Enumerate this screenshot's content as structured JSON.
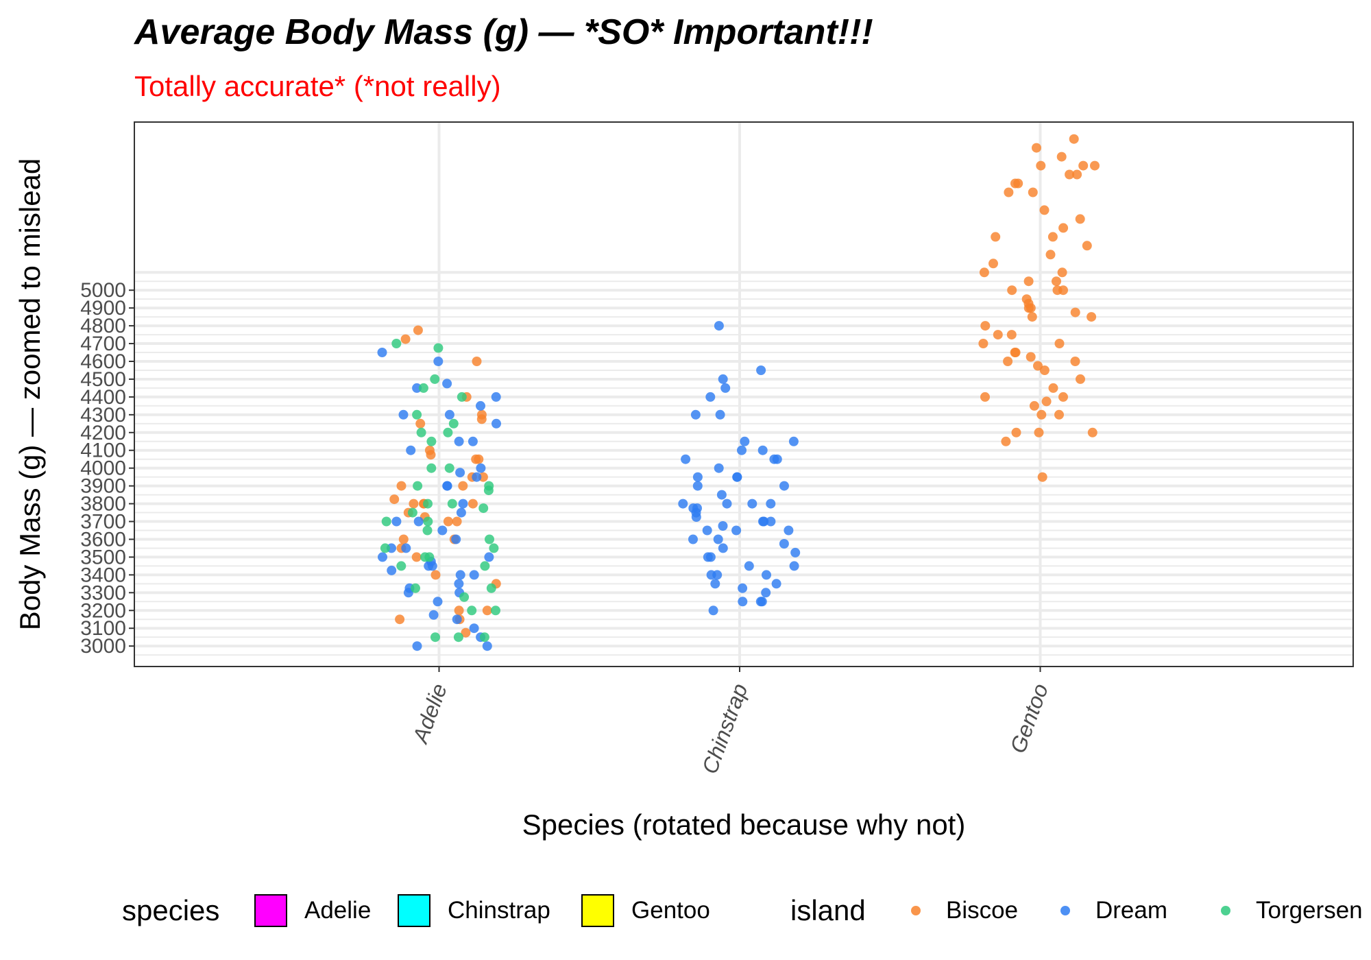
{
  "chart_data": {
    "type": "scatter",
    "title": "Average Body Mass (g) — *SO* Important!!!",
    "subtitle": "Totally accurate* (*not really)",
    "xlabel": "Species (rotated because why not)",
    "ylabel": "Body Mass (g) — zoomed to mislead",
    "categories": [
      "Adelie",
      "Chinstrap",
      "Gentoo"
    ],
    "y_ticks": [
      3000,
      3100,
      3200,
      3300,
      3400,
      3500,
      3600,
      3700,
      3800,
      3900,
      4000,
      4100,
      4200,
      4300,
      4400,
      4500,
      4600,
      4700,
      4800,
      4900,
      5000
    ],
    "ylim": [
      2885,
      5945
    ],
    "grid": true,
    "legend_position": "bottom",
    "legends": [
      {
        "title": "species",
        "items": [
          {
            "label": "Adelie",
            "color": "#ff00ff"
          },
          {
            "label": "Chinstrap",
            "color": "#00ffff"
          },
          {
            "label": "Gentoo",
            "color": "#ffff00"
          }
        ]
      },
      {
        "title": "island",
        "items": [
          {
            "label": "Biscoe",
            "color": "#f8822c"
          },
          {
            "label": "Dream",
            "color": "#2e7cf2"
          },
          {
            "label": "Torgersen",
            "color": "#2ec97e"
          }
        ]
      }
    ],
    "series": [
      {
        "name": "Biscoe",
        "color": "#f8822c",
        "points": [
          [
            "Adelie",
            3700
          ],
          [
            "Adelie",
            3500
          ],
          [
            "Adelie",
            3600
          ],
          [
            "Adelie",
            3350
          ],
          [
            "Adelie",
            3150
          ],
          [
            "Adelie",
            3200
          ],
          [
            "Adelie",
            3550
          ],
          [
            "Adelie",
            3950
          ],
          [
            "Adelie",
            3900
          ],
          [
            "Adelie",
            4600
          ],
          [
            "Adelie",
            4400
          ],
          [
            "Adelie",
            4250
          ],
          [
            "Adelie",
            3800
          ],
          [
            "Adelie",
            3600
          ],
          [
            "Adelie",
            3700
          ],
          [
            "Adelie",
            3750
          ],
          [
            "Adelie",
            4725
          ],
          [
            "Adelie",
            3950
          ],
          [
            "Adelie",
            4300
          ],
          [
            "Adelie",
            4050
          ],
          [
            "Adelie",
            3825
          ],
          [
            "Adelie",
            3400
          ],
          [
            "Adelie",
            3075
          ],
          [
            "Adelie",
            3800
          ],
          [
            "Adelie",
            3800
          ],
          [
            "Adelie",
            3800
          ],
          [
            "Adelie",
            3200
          ],
          [
            "Adelie",
            4275
          ],
          [
            "Adelie",
            4100
          ],
          [
            "Adelie",
            4075
          ],
          [
            "Adelie",
            4050
          ],
          [
            "Adelie",
            3900
          ],
          [
            "Adelie",
            3150
          ],
          [
            "Adelie",
            4775
          ],
          [
            "Adelie",
            3725
          ],
          [
            "Gentoo",
            5700
          ],
          [
            "Gentoo",
            5700
          ],
          [
            "Gentoo",
            5800
          ],
          [
            "Gentoo",
            5650
          ],
          [
            "Gentoo",
            5550
          ],
          [
            "Gentoo",
            5550
          ],
          [
            "Gentoo",
            5700
          ],
          [
            "Gentoo",
            5650
          ],
          [
            "Gentoo",
            5600
          ],
          [
            "Gentoo",
            5450
          ],
          [
            "Gentoo",
            5400
          ],
          [
            "Gentoo",
            5350
          ],
          [
            "Gentoo",
            5300
          ],
          [
            "Gentoo",
            5200
          ],
          [
            "Gentoo",
            5150
          ],
          [
            "Gentoo",
            5100
          ],
          [
            "Gentoo",
            5050
          ],
          [
            "Gentoo",
            5000
          ],
          [
            "Gentoo",
            5000
          ],
          [
            "Gentoo",
            4950
          ],
          [
            "Gentoo",
            4900
          ],
          [
            "Gentoo",
            4900
          ],
          [
            "Gentoo",
            4850
          ],
          [
            "Gentoo",
            4850
          ],
          [
            "Gentoo",
            4800
          ],
          [
            "Gentoo",
            4750
          ],
          [
            "Gentoo",
            4750
          ],
          [
            "Gentoo",
            4700
          ],
          [
            "Gentoo",
            4700
          ],
          [
            "Gentoo",
            4650
          ],
          [
            "Gentoo",
            4650
          ],
          [
            "Gentoo",
            4625
          ],
          [
            "Gentoo",
            4600
          ],
          [
            "Gentoo",
            4600
          ],
          [
            "Gentoo",
            4575
          ],
          [
            "Gentoo",
            4550
          ],
          [
            "Gentoo",
            4500
          ],
          [
            "Gentoo",
            4450
          ],
          [
            "Gentoo",
            4400
          ],
          [
            "Gentoo",
            4400
          ],
          [
            "Gentoo",
            4375
          ],
          [
            "Gentoo",
            4350
          ],
          [
            "Gentoo",
            4300
          ],
          [
            "Gentoo",
            4300
          ],
          [
            "Gentoo",
            4200
          ],
          [
            "Gentoo",
            4200
          ],
          [
            "Gentoo",
            4200
          ],
          [
            "Gentoo",
            4150
          ],
          [
            "Gentoo",
            3950
          ],
          [
            "Gentoo",
            5250
          ],
          [
            "Gentoo",
            5300
          ],
          [
            "Gentoo",
            5100
          ],
          [
            "Gentoo",
            5050
          ],
          [
            "Gentoo",
            5000
          ],
          [
            "Gentoo",
            4925
          ],
          [
            "Gentoo",
            4875
          ],
          [
            "Gentoo",
            5750
          ],
          [
            "Gentoo",
            5600
          ],
          [
            "Gentoo",
            5850
          ]
        ]
      },
      {
        "name": "Dream",
        "color": "#2e7cf2",
        "points": [
          [
            "Adelie",
            4400
          ],
          [
            "Adelie",
            4600
          ],
          [
            "Adelie",
            4300
          ],
          [
            "Adelie",
            4475
          ],
          [
            "Adelie",
            4150
          ],
          [
            "Adelie",
            4000
          ],
          [
            "Adelie",
            3900
          ],
          [
            "Adelie",
            3750
          ],
          [
            "Adelie",
            3550
          ],
          [
            "Adelie",
            3500
          ],
          [
            "Adelie",
            3425
          ],
          [
            "Adelie",
            3325
          ],
          [
            "Adelie",
            3175
          ],
          [
            "Adelie",
            3100
          ],
          [
            "Adelie",
            3000
          ],
          [
            "Adelie",
            3050
          ],
          [
            "Adelie",
            3300
          ],
          [
            "Adelie",
            3400
          ],
          [
            "Adelie",
            3450
          ],
          [
            "Adelie",
            3475
          ],
          [
            "Adelie",
            3500
          ],
          [
            "Adelie",
            3700
          ],
          [
            "Adelie",
            3800
          ],
          [
            "Adelie",
            3950
          ],
          [
            "Adelie",
            4150
          ],
          [
            "Adelie",
            4250
          ],
          [
            "Adelie",
            4300
          ],
          [
            "Adelie",
            4350
          ],
          [
            "Adelie",
            4450
          ],
          [
            "Adelie",
            4650
          ],
          [
            "Adelie",
            4100
          ],
          [
            "Adelie",
            3650
          ],
          [
            "Adelie",
            3600
          ],
          [
            "Adelie",
            3400
          ],
          [
            "Adelie",
            3350
          ],
          [
            "Adelie",
            3250
          ],
          [
            "Adelie",
            3150
          ],
          [
            "Adelie",
            3000
          ],
          [
            "Adelie",
            3975
          ],
          [
            "Adelie",
            3700
          ],
          [
            "Adelie",
            3900
          ],
          [
            "Adelie",
            3550
          ],
          [
            "Adelie",
            3300
          ],
          [
            "Adelie",
            3450
          ],
          [
            "Chinstrap",
            4800
          ],
          [
            "Chinstrap",
            4550
          ],
          [
            "Chinstrap",
            4500
          ],
          [
            "Chinstrap",
            4450
          ],
          [
            "Chinstrap",
            4400
          ],
          [
            "Chinstrap",
            4300
          ],
          [
            "Chinstrap",
            4300
          ],
          [
            "Chinstrap",
            4150
          ],
          [
            "Chinstrap",
            4150
          ],
          [
            "Chinstrap",
            4100
          ],
          [
            "Chinstrap",
            4100
          ],
          [
            "Chinstrap",
            4050
          ],
          [
            "Chinstrap",
            4050
          ],
          [
            "Chinstrap",
            4000
          ],
          [
            "Chinstrap",
            3950
          ],
          [
            "Chinstrap",
            3950
          ],
          [
            "Chinstrap",
            3900
          ],
          [
            "Chinstrap",
            3900
          ],
          [
            "Chinstrap",
            3850
          ],
          [
            "Chinstrap",
            3800
          ],
          [
            "Chinstrap",
            3800
          ],
          [
            "Chinstrap",
            3800
          ],
          [
            "Chinstrap",
            3775
          ],
          [
            "Chinstrap",
            3775
          ],
          [
            "Chinstrap",
            3750
          ],
          [
            "Chinstrap",
            3725
          ],
          [
            "Chinstrap",
            3700
          ],
          [
            "Chinstrap",
            3700
          ],
          [
            "Chinstrap",
            3700
          ],
          [
            "Chinstrap",
            3675
          ],
          [
            "Chinstrap",
            3650
          ],
          [
            "Chinstrap",
            3650
          ],
          [
            "Chinstrap",
            3650
          ],
          [
            "Chinstrap",
            3600
          ],
          [
            "Chinstrap",
            3600
          ],
          [
            "Chinstrap",
            3575
          ],
          [
            "Chinstrap",
            3550
          ],
          [
            "Chinstrap",
            3525
          ],
          [
            "Chinstrap",
            3500
          ],
          [
            "Chinstrap",
            3500
          ],
          [
            "Chinstrap",
            3450
          ],
          [
            "Chinstrap",
            3450
          ],
          [
            "Chinstrap",
            3400
          ],
          [
            "Chinstrap",
            3400
          ],
          [
            "Chinstrap",
            3400
          ],
          [
            "Chinstrap",
            3350
          ],
          [
            "Chinstrap",
            3350
          ],
          [
            "Chinstrap",
            3325
          ],
          [
            "Chinstrap",
            3300
          ],
          [
            "Chinstrap",
            3250
          ],
          [
            "Chinstrap",
            3250
          ],
          [
            "Chinstrap",
            3250
          ],
          [
            "Chinstrap",
            3200
          ],
          [
            "Chinstrap",
            3950
          ],
          [
            "Chinstrap",
            3800
          ],
          [
            "Chinstrap",
            4050
          ]
        ]
      },
      {
        "name": "Torgersen",
        "color": "#2ec97e",
        "points": [
          [
            "Adelie",
            4700
          ],
          [
            "Adelie",
            4675
          ],
          [
            "Adelie",
            4500
          ],
          [
            "Adelie",
            4450
          ],
          [
            "Adelie",
            4400
          ],
          [
            "Adelie",
            4250
          ],
          [
            "Adelie",
            4200
          ],
          [
            "Adelie",
            4200
          ],
          [
            "Adelie",
            4150
          ],
          [
            "Adelie",
            4000
          ],
          [
            "Adelie",
            4000
          ],
          [
            "Adelie",
            3900
          ],
          [
            "Adelie",
            3900
          ],
          [
            "Adelie",
            3875
          ],
          [
            "Adelie",
            3800
          ],
          [
            "Adelie",
            3800
          ],
          [
            "Adelie",
            3775
          ],
          [
            "Adelie",
            3750
          ],
          [
            "Adelie",
            3700
          ],
          [
            "Adelie",
            3700
          ],
          [
            "Adelie",
            3650
          ],
          [
            "Adelie",
            3600
          ],
          [
            "Adelie",
            3550
          ],
          [
            "Adelie",
            3550
          ],
          [
            "Adelie",
            3500
          ],
          [
            "Adelie",
            3500
          ],
          [
            "Adelie",
            3450
          ],
          [
            "Adelie",
            3450
          ],
          [
            "Adelie",
            3325
          ],
          [
            "Adelie",
            3325
          ],
          [
            "Adelie",
            3275
          ],
          [
            "Adelie",
            3200
          ],
          [
            "Adelie",
            3200
          ],
          [
            "Adelie",
            3050
          ],
          [
            "Adelie",
            3050
          ],
          [
            "Adelie",
            3050
          ],
          [
            "Adelie",
            4300
          ]
        ]
      }
    ]
  }
}
